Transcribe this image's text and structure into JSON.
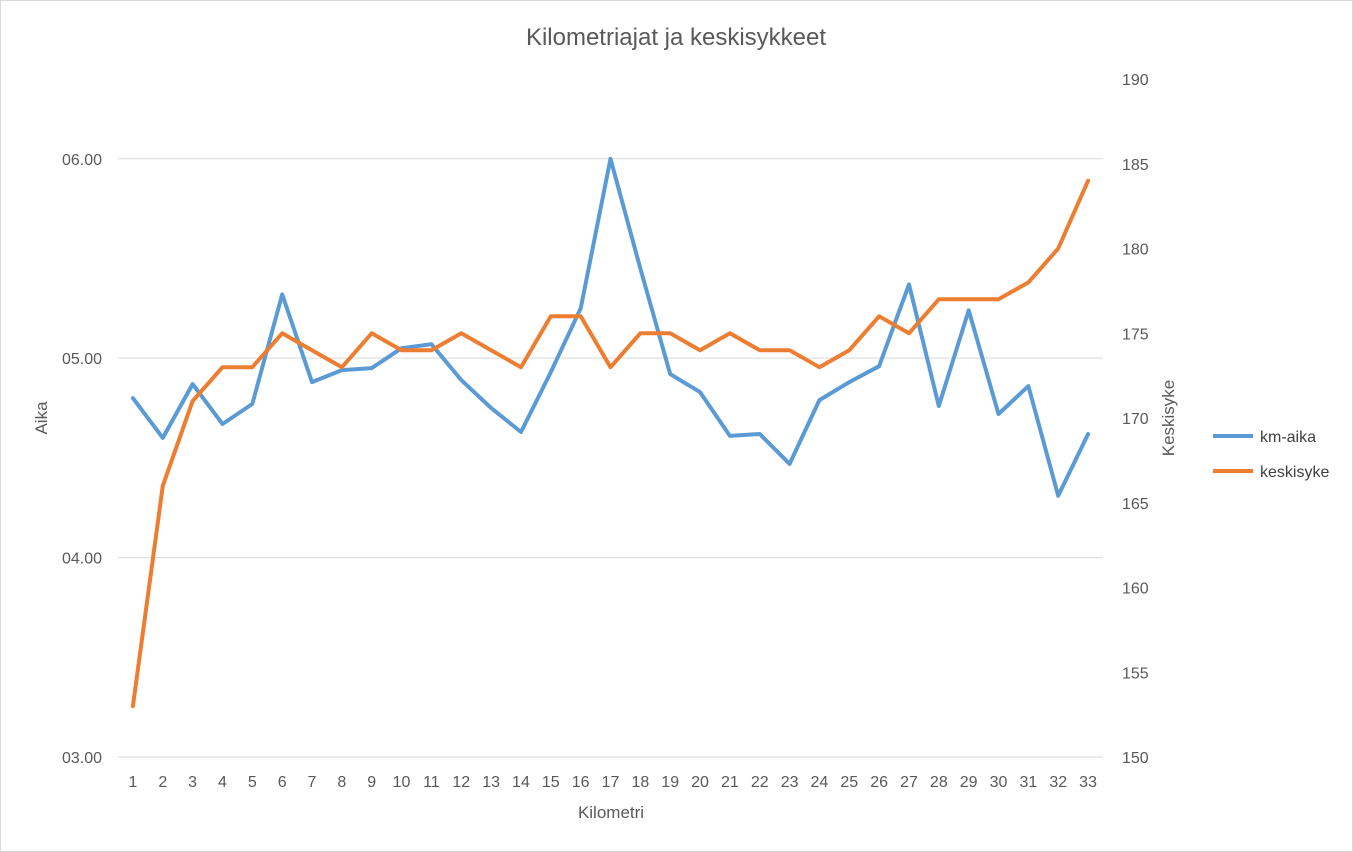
{
  "chart_data": {
    "type": "line",
    "title": "Kilometriajat ja keskisykkeet",
    "xlabel": "Kilometri",
    "ylabel": "Aika",
    "y2label": "Keskisyke",
    "categories": [
      "1",
      "2",
      "3",
      "4",
      "5",
      "6",
      "7",
      "8",
      "9",
      "10",
      "11",
      "12",
      "13",
      "14",
      "15",
      "16",
      "17",
      "18",
      "19",
      "20",
      "21",
      "22",
      "23",
      "24",
      "25",
      "26",
      "27",
      "28",
      "29",
      "30",
      "31",
      "32",
      "33"
    ],
    "y_axis": {
      "min": 3.0,
      "max": 6.4,
      "ticks": [
        3.0,
        4.0,
        5.0,
        6.0
      ],
      "tick_labels": [
        "03.00",
        "04.00",
        "05.00",
        "06.00"
      ]
    },
    "y2_axis": {
      "min": 150,
      "max": 190,
      "ticks": [
        150,
        155,
        160,
        165,
        170,
        175,
        180,
        185,
        190
      ],
      "tick_labels": [
        "150",
        "155",
        "160",
        "165",
        "170",
        "175",
        "180",
        "185",
        "190"
      ]
    },
    "grid": true,
    "legend_position": "right",
    "series": [
      {
        "name": "km-aika",
        "axis": "left",
        "color": "#5b9bd5",
        "values": [
          4.8,
          4.6,
          4.87,
          4.67,
          4.77,
          5.32,
          4.88,
          4.94,
          4.95,
          5.05,
          5.07,
          4.89,
          4.75,
          4.63,
          4.93,
          5.25,
          6.0,
          5.45,
          4.92,
          4.83,
          4.61,
          4.62,
          4.47,
          4.79,
          4.88,
          4.96,
          5.37,
          4.76,
          5.24,
          4.72,
          4.86,
          4.31,
          4.62
        ]
      },
      {
        "name": "keskisyke",
        "axis": "right",
        "color": "#ed7d31",
        "values": [
          153,
          166,
          171,
          173,
          173,
          175,
          174,
          173,
          175,
          174,
          174,
          175,
          174,
          173,
          176,
          176,
          173,
          175,
          175,
          174,
          175,
          174,
          174,
          173,
          174,
          176,
          175,
          177,
          177,
          177,
          178,
          180,
          184
        ]
      }
    ]
  }
}
